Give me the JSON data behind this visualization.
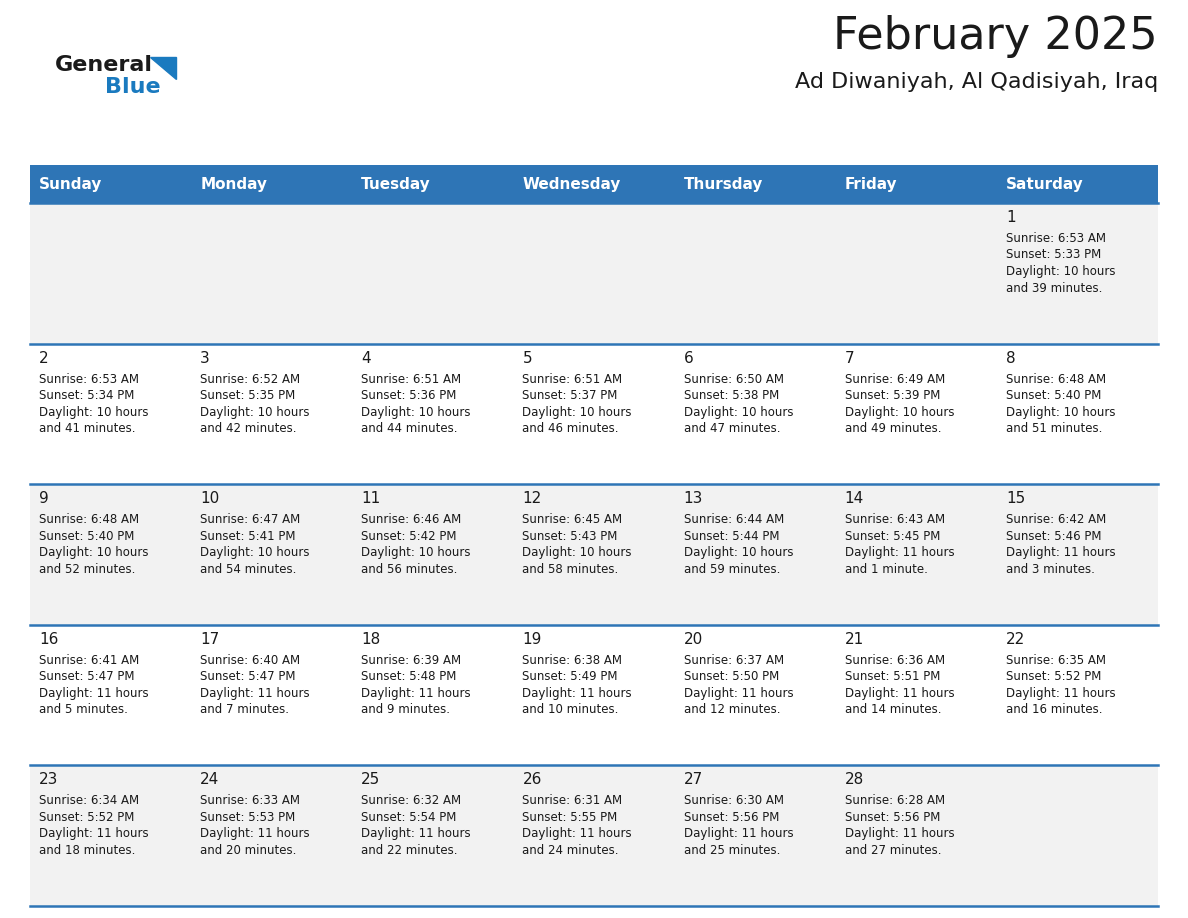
{
  "title": "February 2025",
  "subtitle": "Ad Diwaniyah, Al Qadisiyah, Iraq",
  "header_bg": "#2E75B6",
  "header_text_color": "#FFFFFF",
  "cell_bg_odd": "#F2F2F2",
  "cell_bg_even": "#FFFFFF",
  "day_headers": [
    "Sunday",
    "Monday",
    "Tuesday",
    "Wednesday",
    "Thursday",
    "Friday",
    "Saturday"
  ],
  "days": [
    {
      "date": 1,
      "col": 6,
      "row": 0,
      "sunrise": "6:53 AM",
      "sunset": "5:33 PM",
      "daylight_line1": "Daylight: 10 hours",
      "daylight_line2": "and 39 minutes."
    },
    {
      "date": 2,
      "col": 0,
      "row": 1,
      "sunrise": "6:53 AM",
      "sunset": "5:34 PM",
      "daylight_line1": "Daylight: 10 hours",
      "daylight_line2": "and 41 minutes."
    },
    {
      "date": 3,
      "col": 1,
      "row": 1,
      "sunrise": "6:52 AM",
      "sunset": "5:35 PM",
      "daylight_line1": "Daylight: 10 hours",
      "daylight_line2": "and 42 minutes."
    },
    {
      "date": 4,
      "col": 2,
      "row": 1,
      "sunrise": "6:51 AM",
      "sunset": "5:36 PM",
      "daylight_line1": "Daylight: 10 hours",
      "daylight_line2": "and 44 minutes."
    },
    {
      "date": 5,
      "col": 3,
      "row": 1,
      "sunrise": "6:51 AM",
      "sunset": "5:37 PM",
      "daylight_line1": "Daylight: 10 hours",
      "daylight_line2": "and 46 minutes."
    },
    {
      "date": 6,
      "col": 4,
      "row": 1,
      "sunrise": "6:50 AM",
      "sunset": "5:38 PM",
      "daylight_line1": "Daylight: 10 hours",
      "daylight_line2": "and 47 minutes."
    },
    {
      "date": 7,
      "col": 5,
      "row": 1,
      "sunrise": "6:49 AM",
      "sunset": "5:39 PM",
      "daylight_line1": "Daylight: 10 hours",
      "daylight_line2": "and 49 minutes."
    },
    {
      "date": 8,
      "col": 6,
      "row": 1,
      "sunrise": "6:48 AM",
      "sunset": "5:40 PM",
      "daylight_line1": "Daylight: 10 hours",
      "daylight_line2": "and 51 minutes."
    },
    {
      "date": 9,
      "col": 0,
      "row": 2,
      "sunrise": "6:48 AM",
      "sunset": "5:40 PM",
      "daylight_line1": "Daylight: 10 hours",
      "daylight_line2": "and 52 minutes."
    },
    {
      "date": 10,
      "col": 1,
      "row": 2,
      "sunrise": "6:47 AM",
      "sunset": "5:41 PM",
      "daylight_line1": "Daylight: 10 hours",
      "daylight_line2": "and 54 minutes."
    },
    {
      "date": 11,
      "col": 2,
      "row": 2,
      "sunrise": "6:46 AM",
      "sunset": "5:42 PM",
      "daylight_line1": "Daylight: 10 hours",
      "daylight_line2": "and 56 minutes."
    },
    {
      "date": 12,
      "col": 3,
      "row": 2,
      "sunrise": "6:45 AM",
      "sunset": "5:43 PM",
      "daylight_line1": "Daylight: 10 hours",
      "daylight_line2": "and 58 minutes."
    },
    {
      "date": 13,
      "col": 4,
      "row": 2,
      "sunrise": "6:44 AM",
      "sunset": "5:44 PM",
      "daylight_line1": "Daylight: 10 hours",
      "daylight_line2": "and 59 minutes."
    },
    {
      "date": 14,
      "col": 5,
      "row": 2,
      "sunrise": "6:43 AM",
      "sunset": "5:45 PM",
      "daylight_line1": "Daylight: 11 hours",
      "daylight_line2": "and 1 minute."
    },
    {
      "date": 15,
      "col": 6,
      "row": 2,
      "sunrise": "6:42 AM",
      "sunset": "5:46 PM",
      "daylight_line1": "Daylight: 11 hours",
      "daylight_line2": "and 3 minutes."
    },
    {
      "date": 16,
      "col": 0,
      "row": 3,
      "sunrise": "6:41 AM",
      "sunset": "5:47 PM",
      "daylight_line1": "Daylight: 11 hours",
      "daylight_line2": "and 5 minutes."
    },
    {
      "date": 17,
      "col": 1,
      "row": 3,
      "sunrise": "6:40 AM",
      "sunset": "5:47 PM",
      "daylight_line1": "Daylight: 11 hours",
      "daylight_line2": "and 7 minutes."
    },
    {
      "date": 18,
      "col": 2,
      "row": 3,
      "sunrise": "6:39 AM",
      "sunset": "5:48 PM",
      "daylight_line1": "Daylight: 11 hours",
      "daylight_line2": "and 9 minutes."
    },
    {
      "date": 19,
      "col": 3,
      "row": 3,
      "sunrise": "6:38 AM",
      "sunset": "5:49 PM",
      "daylight_line1": "Daylight: 11 hours",
      "daylight_line2": "and 10 minutes."
    },
    {
      "date": 20,
      "col": 4,
      "row": 3,
      "sunrise": "6:37 AM",
      "sunset": "5:50 PM",
      "daylight_line1": "Daylight: 11 hours",
      "daylight_line2": "and 12 minutes."
    },
    {
      "date": 21,
      "col": 5,
      "row": 3,
      "sunrise": "6:36 AM",
      "sunset": "5:51 PM",
      "daylight_line1": "Daylight: 11 hours",
      "daylight_line2": "and 14 minutes."
    },
    {
      "date": 22,
      "col": 6,
      "row": 3,
      "sunrise": "6:35 AM",
      "sunset": "5:52 PM",
      "daylight_line1": "Daylight: 11 hours",
      "daylight_line2": "and 16 minutes."
    },
    {
      "date": 23,
      "col": 0,
      "row": 4,
      "sunrise": "6:34 AM",
      "sunset": "5:52 PM",
      "daylight_line1": "Daylight: 11 hours",
      "daylight_line2": "and 18 minutes."
    },
    {
      "date": 24,
      "col": 1,
      "row": 4,
      "sunrise": "6:33 AM",
      "sunset": "5:53 PM",
      "daylight_line1": "Daylight: 11 hours",
      "daylight_line2": "and 20 minutes."
    },
    {
      "date": 25,
      "col": 2,
      "row": 4,
      "sunrise": "6:32 AM",
      "sunset": "5:54 PM",
      "daylight_line1": "Daylight: 11 hours",
      "daylight_line2": "and 22 minutes."
    },
    {
      "date": 26,
      "col": 3,
      "row": 4,
      "sunrise": "6:31 AM",
      "sunset": "5:55 PM",
      "daylight_line1": "Daylight: 11 hours",
      "daylight_line2": "and 24 minutes."
    },
    {
      "date": 27,
      "col": 4,
      "row": 4,
      "sunrise": "6:30 AM",
      "sunset": "5:56 PM",
      "daylight_line1": "Daylight: 11 hours",
      "daylight_line2": "and 25 minutes."
    },
    {
      "date": 28,
      "col": 5,
      "row": 4,
      "sunrise": "6:28 AM",
      "sunset": "5:56 PM",
      "daylight_line1": "Daylight: 11 hours",
      "daylight_line2": "and 27 minutes."
    }
  ],
  "num_rows": 5,
  "num_cols": 7,
  "logo_color_general": "#1a1a1a",
  "logo_color_blue": "#1a7abf",
  "logo_triangle_color": "#1a7abf",
  "title_color": "#1a1a1a",
  "subtitle_color": "#1a1a1a",
  "divider_color": "#2E75B6",
  "cell_text_color": "#1a1a1a",
  "date_fontsize": 11,
  "info_fontsize": 8.5,
  "header_fontsize": 11
}
